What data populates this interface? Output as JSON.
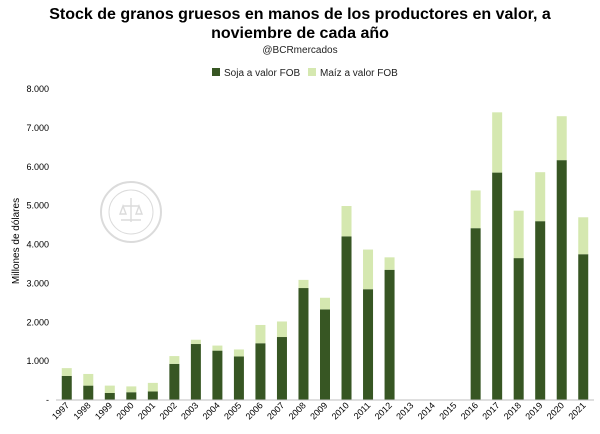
{
  "chart_data": {
    "type": "bar",
    "stacked": true,
    "title_line1": "Stock de granos gruesos en manos de los productores en valor, a",
    "title_line2": "noviembre de cada año",
    "subtitle": "@BCRmercados",
    "ylabel": "Millones de dólares",
    "xlabel": "",
    "ylim": [
      0,
      8000
    ],
    "yticks": [
      "-",
      "1.000",
      "2.000",
      "3.000",
      "4.000",
      "5.000",
      "6.000",
      "7.000",
      "8.000"
    ],
    "legend_position": "top",
    "grid": false,
    "categories": [
      "1997",
      "1998",
      "1999",
      "2000",
      "2001",
      "2002",
      "2003",
      "2004",
      "2005",
      "2006",
      "2007",
      "2008",
      "2009",
      "2010",
      "2011",
      "2012",
      "2013",
      "2014",
      "2015",
      "2016",
      "2017",
      "2018",
      "2019",
      "2020",
      "2021"
    ],
    "series": [
      {
        "name": "Soja a valor FOB",
        "color": "#375623",
        "values": [
          620,
          370,
          180,
          200,
          220,
          930,
          1440,
          1270,
          1120,
          1460,
          1620,
          2880,
          2330,
          4210,
          2850,
          3350,
          0,
          0,
          0,
          4420,
          5850,
          3650,
          4600,
          6170,
          3750
        ]
      },
      {
        "name": "Maíz a valor FOB",
        "color": "#D5E8B0",
        "values": [
          200,
          300,
          190,
          150,
          220,
          200,
          110,
          130,
          180,
          470,
          400,
          210,
          300,
          780,
          1020,
          320,
          0,
          0,
          0,
          970,
          1550,
          1220,
          1260,
          1130,
          950
        ]
      }
    ],
    "watermark": "BOLSA DE COMERCIO DE ROSARIO"
  }
}
